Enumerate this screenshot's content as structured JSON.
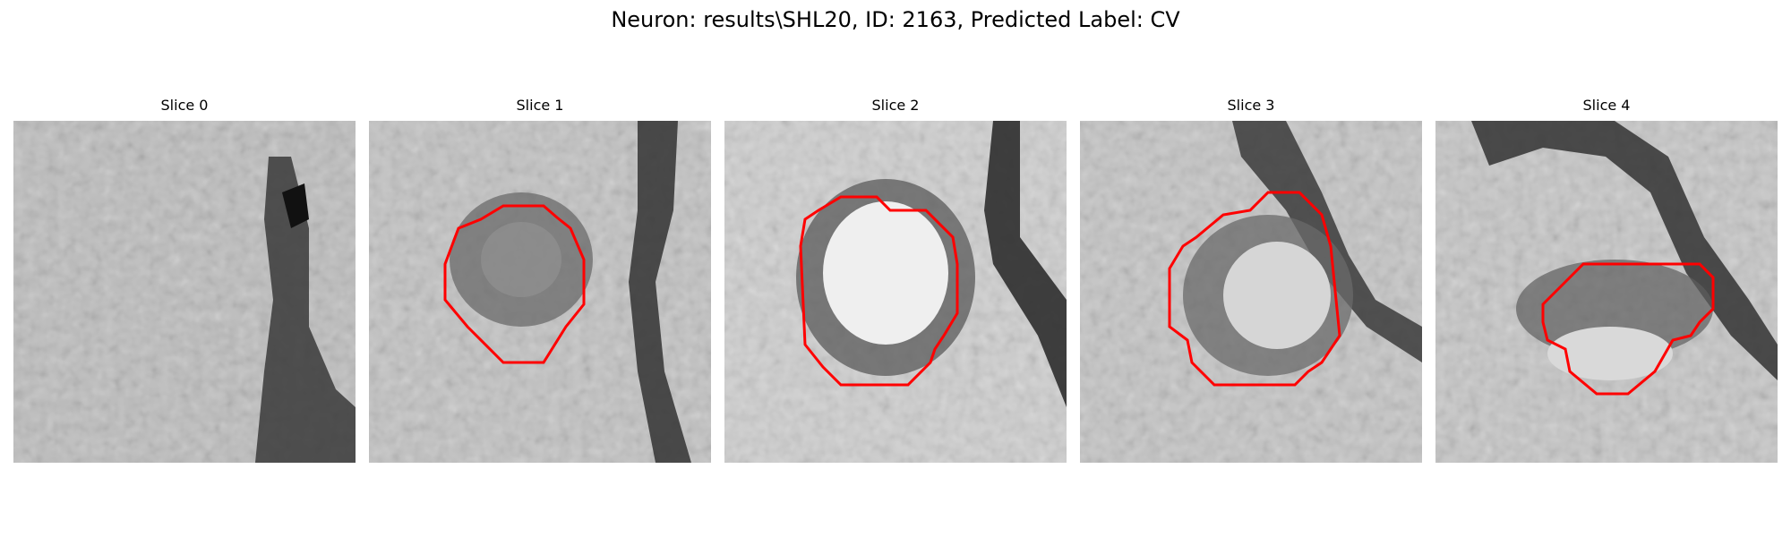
{
  "figure": {
    "title": "Neuron: results\\SHL20, ID: 2163, Predicted Label: CV",
    "contour_color": "#ff0000"
  },
  "slices": [
    {
      "label": "Slice 0",
      "has_contour": false
    },
    {
      "label": "Slice 1",
      "has_contour": true
    },
    {
      "label": "Slice 2",
      "has_contour": true
    },
    {
      "label": "Slice 3",
      "has_contour": true
    },
    {
      "label": "Slice 4",
      "has_contour": true
    }
  ]
}
